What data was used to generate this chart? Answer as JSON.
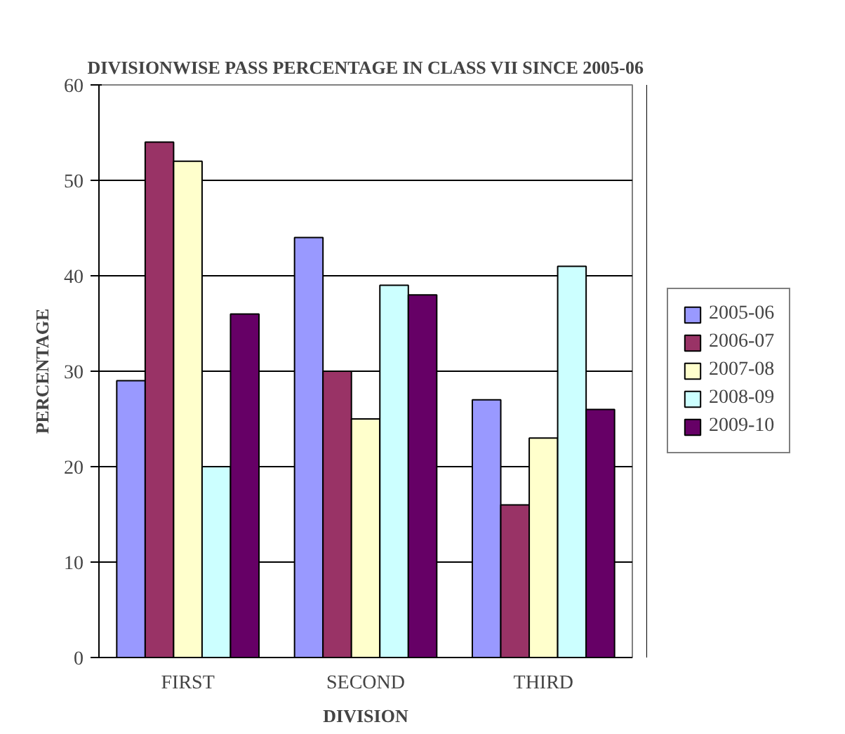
{
  "chart_data": {
    "type": "bar",
    "title": "DIVISIONWISE PASS PERCENTAGE IN CLASS VII SINCE 2005-06",
    "xlabel": "DIVISION",
    "ylabel": "PERCENTAGE",
    "categories": [
      "FIRST",
      "SECOND",
      "THIRD"
    ],
    "series": [
      {
        "name": "2005-06",
        "color": "#9999ff",
        "values": [
          29,
          44,
          27
        ]
      },
      {
        "name": "2006-07",
        "color": "#993366",
        "values": [
          54,
          30,
          16
        ]
      },
      {
        "name": "2007-08",
        "color": "#ffffcc",
        "values": [
          52,
          25,
          23
        ]
      },
      {
        "name": "2008-09",
        "color": "#ccffff",
        "values": [
          20,
          39,
          41
        ]
      },
      {
        "name": "2009-10",
        "color": "#660066",
        "values": [
          36,
          38,
          26
        ]
      }
    ],
    "ylim": [
      0,
      60
    ],
    "yticks": [
      0,
      10,
      20,
      30,
      40,
      50,
      60
    ],
    "grid": "y",
    "legend": "right"
  }
}
